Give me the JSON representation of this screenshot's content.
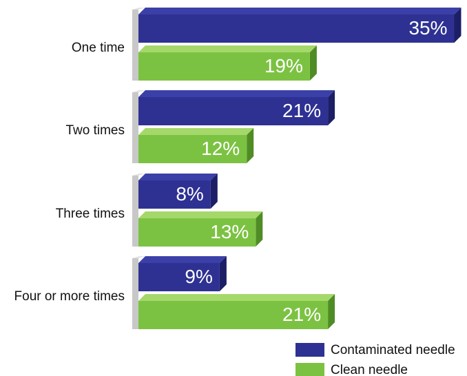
{
  "chart_data": {
    "type": "bar",
    "orientation": "horizontal",
    "title": "",
    "xlabel": "",
    "ylabel": "",
    "categories": [
      "One time",
      "Two times",
      "Three times",
      "Four or more times"
    ],
    "series": [
      {
        "name": "Contaminated needle",
        "values": [
          35,
          21,
          8,
          9
        ],
        "labels": [
          "35%",
          "21%",
          "8%",
          "9%"
        ],
        "color": "#2e3192"
      },
      {
        "name": "Clean needle",
        "values": [
          19,
          12,
          13,
          21
        ],
        "labels": [
          "19%",
          "12%",
          "13%",
          "21%"
        ],
        "color": "#7cc242"
      }
    ],
    "xlim": [
      0,
      35
    ],
    "grid": false,
    "legend_position": "bottom-right"
  }
}
